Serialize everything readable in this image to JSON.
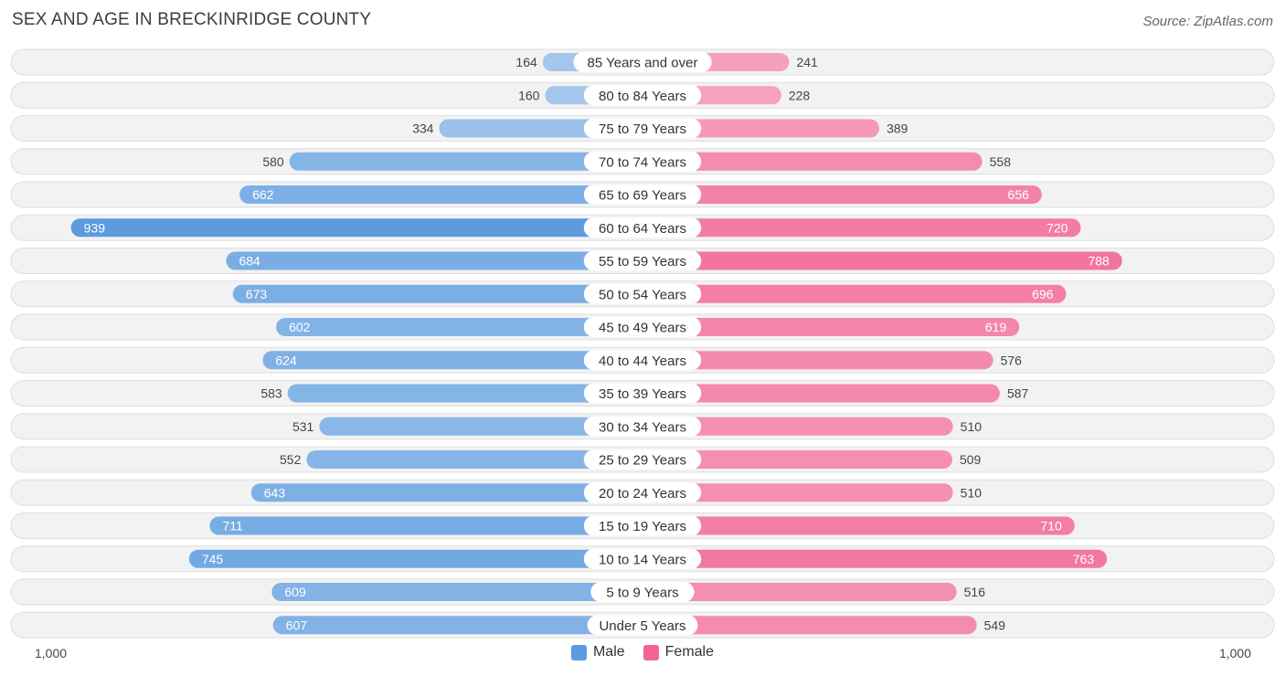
{
  "title": "SEX AND AGE IN BRECKINRIDGE COUNTY",
  "source": "Source: ZipAtlas.com",
  "axis": {
    "left_label": "1,000",
    "right_label": "1,000"
  },
  "legend": {
    "male_label": "Male",
    "female_label": "Female"
  },
  "colors": {
    "male_dark": "#5b9bde",
    "male_light": "#a9c9ee",
    "female_dark": "#f06596",
    "female_light": "#f7a8c5",
    "row_bg": "#f2f2f2",
    "row_border": "#dedede"
  },
  "chart_data": {
    "type": "bar",
    "orientation": "horizontal-diverging",
    "title": "SEX AND AGE IN BRECKINRIDGE COUNTY",
    "xlim": [
      -1000,
      1000
    ],
    "categories": [
      "85 Years and over",
      "80 to 84 Years",
      "75 to 79 Years",
      "70 to 74 Years",
      "65 to 69 Years",
      "60 to 64 Years",
      "55 to 59 Years",
      "50 to 54 Years",
      "45 to 49 Years",
      "40 to 44 Years",
      "35 to 39 Years",
      "30 to 34 Years",
      "25 to 29 Years",
      "20 to 24 Years",
      "15 to 19 Years",
      "10 to 14 Years",
      "5 to 9 Years",
      "Under 5 Years"
    ],
    "series": [
      {
        "name": "Male",
        "values": [
          164,
          160,
          334,
          580,
          662,
          939,
          684,
          673,
          602,
          624,
          583,
          531,
          552,
          643,
          711,
          745,
          609,
          607
        ]
      },
      {
        "name": "Female",
        "values": [
          241,
          228,
          389,
          558,
          656,
          720,
          788,
          696,
          619,
          576,
          587,
          510,
          509,
          510,
          710,
          763,
          516,
          549
        ]
      }
    ]
  }
}
